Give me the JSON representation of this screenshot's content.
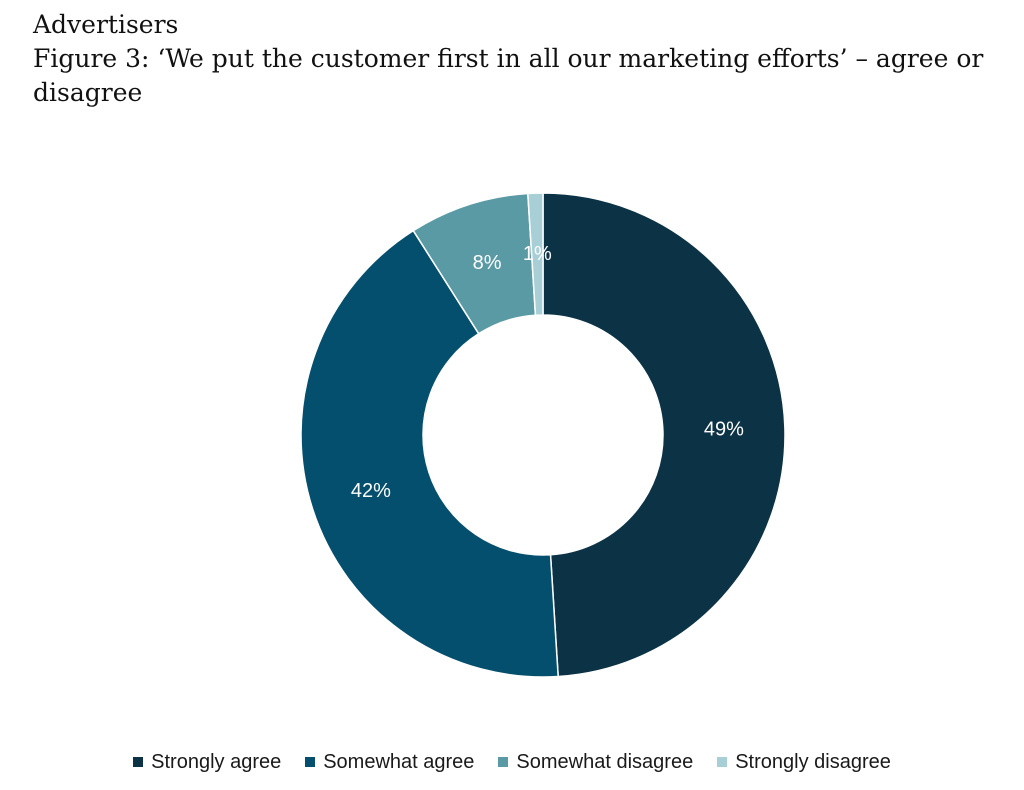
{
  "header": {
    "section_title": "Advertisers",
    "figure_caption": "Figure 3: ‘We put the customer first in all our marketing efforts’ – agree or disagree"
  },
  "chart_data": {
    "type": "pie",
    "style": "donut",
    "categories": [
      "Strongly agree",
      "Somewhat agree",
      "Somewhat disagree",
      "Strongly disagree"
    ],
    "values": [
      49,
      42,
      8,
      1
    ],
    "data_labels": [
      "49%",
      "42%",
      "8%",
      "1%"
    ],
    "colors": [
      "#0b3245",
      "#054f6e",
      "#5a9aa5",
      "#a9cfd6"
    ],
    "legend_position": "bottom",
    "title": ""
  }
}
